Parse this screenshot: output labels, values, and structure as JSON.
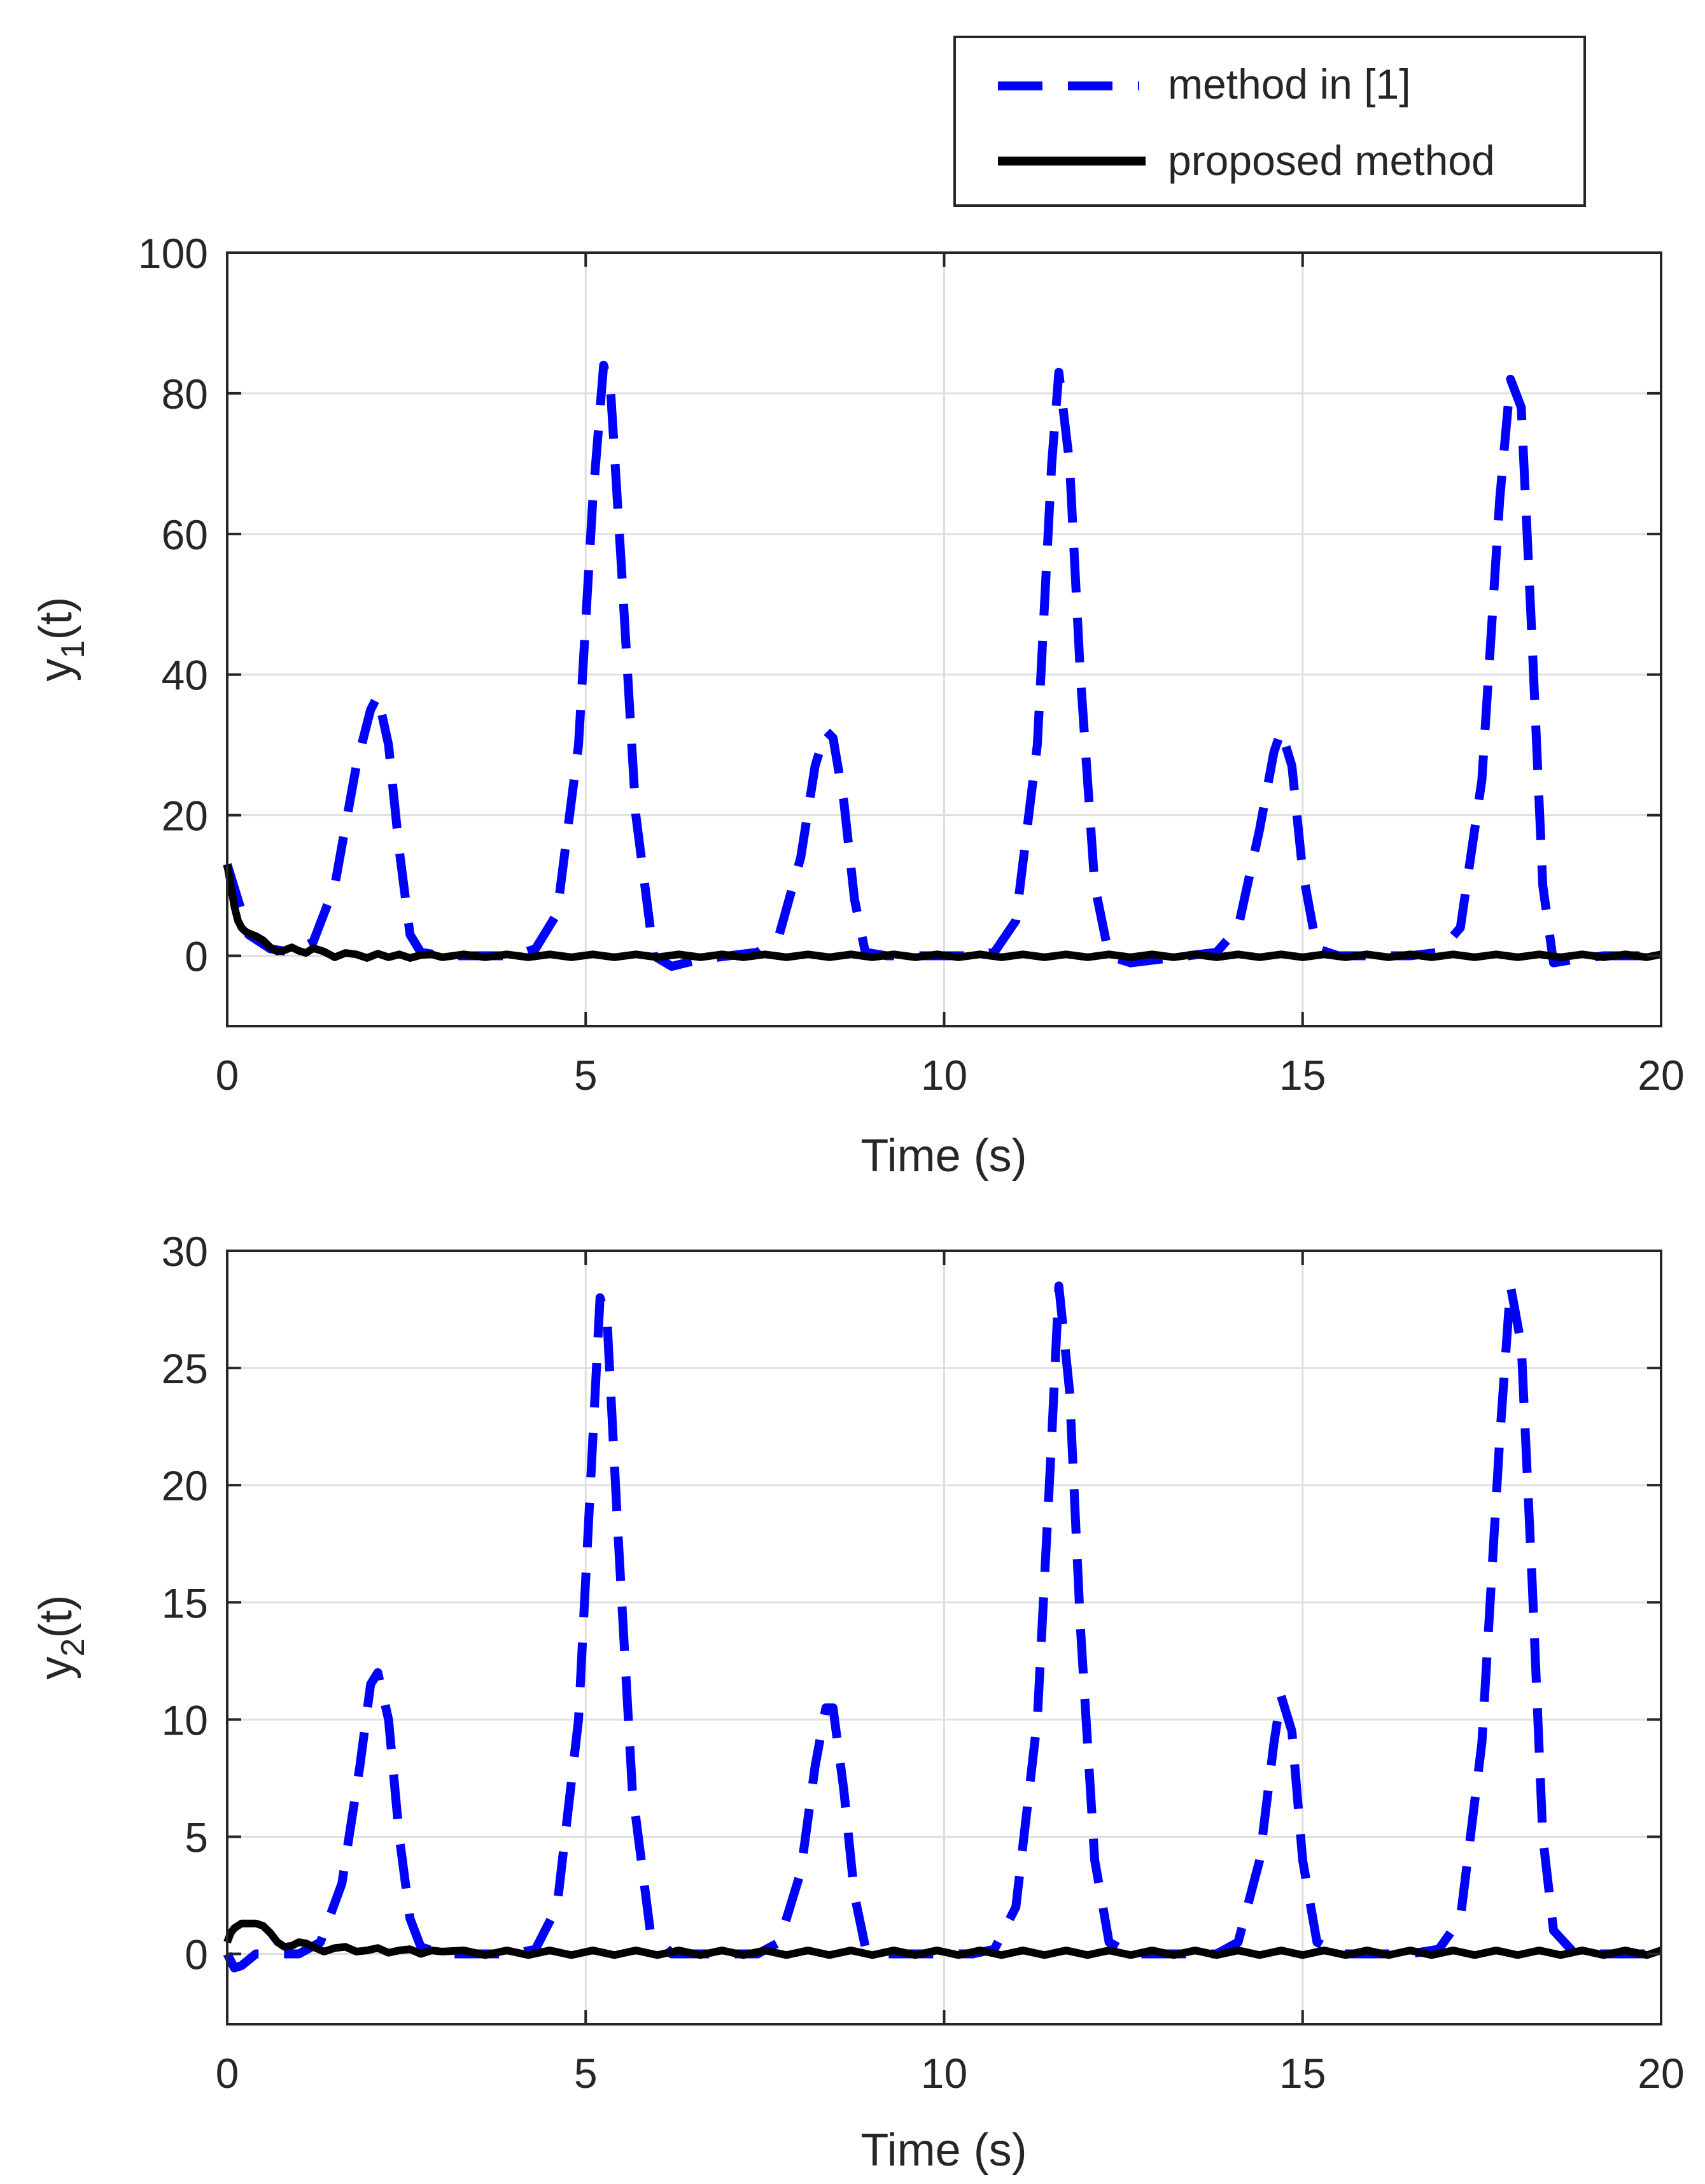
{
  "legend": {
    "placement": "top-right",
    "entries": [
      {
        "label": "method in [1]",
        "color": "#0000ff",
        "style": "dashed"
      },
      {
        "label": "proposed method",
        "color": "#000000",
        "style": "solid"
      }
    ]
  },
  "chart_data": [
    {
      "type": "line",
      "title": "",
      "xlabel": "Time (s)",
      "ylabel_main": "y",
      "ylabel_sub": "1",
      "ylabel_tail": "(t)",
      "xlim": [
        0,
        20
      ],
      "ylim": [
        -10,
        100
      ],
      "xticks": [
        0,
        5,
        10,
        15,
        20
      ],
      "yticks": [
        0,
        20,
        40,
        60,
        80,
        100
      ],
      "grid": true,
      "series": [
        {
          "name": "method in [1]",
          "color": "#0000ff",
          "style": "dashed",
          "x": [
            0,
            0.3,
            0.6,
            0.9,
            1.2,
            1.5,
            1.8,
            2.0,
            2.1,
            2.25,
            2.4,
            2.55,
            2.7,
            3.0,
            3.5,
            4.0,
            4.3,
            4.6,
            4.9,
            5.1,
            5.25,
            5.35,
            5.5,
            5.7,
            5.95,
            6.2,
            6.6,
            7.0,
            7.4,
            7.7,
            8.0,
            8.2,
            8.35,
            8.45,
            8.6,
            8.75,
            8.9,
            9.2,
            9.6,
            10.0,
            10.4,
            10.7,
            11.0,
            11.3,
            11.5,
            11.6,
            11.75,
            11.9,
            12.1,
            12.3,
            12.6,
            13.0,
            13.4,
            13.8,
            14.1,
            14.4,
            14.6,
            14.7,
            14.85,
            15.0,
            15.2,
            15.5,
            16.0,
            16.5,
            16.9,
            17.2,
            17.5,
            17.75,
            17.9,
            18.05,
            18.2,
            18.35,
            18.5,
            18.8,
            19.2,
            19.6,
            20.0
          ],
          "y": [
            13,
            3,
            1,
            0.5,
            2,
            10,
            27,
            35,
            37,
            30,
            15,
            3,
            0.5,
            0,
            0,
            0,
            1,
            6,
            30,
            65,
            84,
            80,
            55,
            20,
            0,
            -1.5,
            -0.5,
            0,
            0.5,
            3,
            14,
            27,
            32,
            31,
            22,
            8,
            0.5,
            0,
            0,
            0,
            0,
            0.5,
            5,
            30,
            70,
            83,
            70,
            40,
            10,
            0,
            -1,
            -0.5,
            0,
            0.5,
            4,
            18,
            29,
            32,
            27,
            12,
            1,
            0,
            0,
            0,
            0.5,
            4,
            25,
            65,
            82,
            78,
            45,
            10,
            -1,
            -0.5,
            0,
            0,
            0
          ]
        },
        {
          "name": "proposed method",
          "color": "#000000",
          "style": "solid",
          "x": [
            0,
            0.05,
            0.1,
            0.15,
            0.2,
            0.25,
            0.3,
            0.35,
            0.4,
            0.5,
            0.6,
            0.7,
            0.8,
            0.9,
            1.0,
            1.1,
            1.2,
            1.35,
            1.5,
            1.65,
            1.8,
            1.95,
            2.1,
            2.25,
            2.4,
            2.55,
            2.7,
            2.85,
            3.0,
            3.3,
            3.6,
            3.9,
            4.2,
            4.5,
            4.8,
            5.1,
            5.4,
            5.7,
            6.0,
            6.3,
            6.6,
            6.9,
            7.2,
            7.5,
            7.8,
            8.1,
            8.4,
            8.7,
            9.0,
            9.3,
            9.6,
            9.9,
            10.2,
            10.5,
            10.8,
            11.1,
            11.4,
            11.7,
            12.0,
            12.3,
            12.6,
            12.9,
            13.2,
            13.5,
            13.8,
            14.1,
            14.4,
            14.7,
            15.0,
            15.3,
            15.6,
            15.9,
            16.2,
            16.5,
            16.8,
            17.1,
            17.4,
            17.7,
            18.0,
            18.3,
            18.6,
            18.9,
            19.2,
            19.5,
            19.8,
            20.0
          ],
          "y": [
            13,
            10,
            7,
            5,
            4,
            3.5,
            3.2,
            3,
            2.8,
            2.2,
            1.2,
            0.6,
            0.8,
            1.2,
            0.7,
            0.4,
            1.1,
            0.6,
            -0.2,
            0.4,
            0.2,
            -0.3,
            0.3,
            -0.2,
            0.2,
            -0.3,
            0.1,
            0.2,
            -0.2,
            0.2,
            -0.2,
            0.2,
            -0.2,
            0.2,
            -0.2,
            0.2,
            -0.2,
            0.2,
            -0.2,
            0.2,
            -0.2,
            0.2,
            -0.2,
            0.2,
            -0.2,
            0.2,
            -0.2,
            0.2,
            -0.2,
            0.2,
            -0.2,
            0.2,
            -0.2,
            0.2,
            -0.2,
            0.2,
            -0.2,
            0.2,
            -0.2,
            0.2,
            -0.2,
            0.2,
            -0.2,
            0.2,
            -0.2,
            0.2,
            -0.2,
            0.2,
            -0.2,
            0.2,
            -0.2,
            0.2,
            -0.2,
            0.2,
            -0.2,
            0.2,
            -0.2,
            0.2,
            -0.2,
            0.2,
            -0.2,
            0.2,
            -0.2,
            0.2,
            -0.2,
            0.2
          ]
        }
      ]
    },
    {
      "type": "line",
      "title": "",
      "xlabel": "Time (s)",
      "ylabel_main": "y",
      "ylabel_sub": "2",
      "ylabel_tail": "(t)",
      "xlim": [
        0,
        20
      ],
      "ylim": [
        -3,
        30
      ],
      "xticks": [
        0,
        5,
        10,
        15,
        20
      ],
      "yticks": [
        0,
        5,
        10,
        15,
        20,
        25,
        30
      ],
      "grid": true,
      "series": [
        {
          "name": "method in [1]",
          "color": "#0000ff",
          "style": "dashed",
          "x": [
            0,
            0.1,
            0.2,
            0.4,
            0.7,
            1.0,
            1.3,
            1.6,
            1.85,
            2.0,
            2.1,
            2.25,
            2.4,
            2.55,
            2.7,
            3.0,
            3.5,
            4.0,
            4.3,
            4.6,
            4.9,
            5.1,
            5.2,
            5.3,
            5.45,
            5.65,
            5.9,
            6.2,
            6.6,
            7.0,
            7.4,
            7.7,
            8.0,
            8.2,
            8.35,
            8.45,
            8.6,
            8.75,
            8.9,
            9.2,
            9.6,
            10.0,
            10.4,
            10.7,
            11.0,
            11.3,
            11.5,
            11.6,
            11.75,
            11.9,
            12.1,
            12.3,
            12.6,
            13.0,
            13.4,
            13.8,
            14.1,
            14.4,
            14.6,
            14.7,
            14.85,
            15.0,
            15.2,
            15.5,
            16.0,
            16.5,
            16.9,
            17.2,
            17.5,
            17.75,
            17.9,
            18.05,
            18.2,
            18.35,
            18.5,
            18.8,
            19.2,
            19.6,
            20.0
          ],
          "y": [
            0,
            -0.6,
            -0.5,
            0,
            0,
            0,
            0.5,
            3,
            8,
            11.5,
            12,
            10,
            5,
            1.5,
            0.3,
            0,
            0,
            0,
            0.2,
            2,
            10,
            22,
            28,
            27,
            18,
            7,
            1,
            0,
            0,
            0,
            0,
            0.5,
            3.5,
            8,
            10.5,
            10.5,
            7,
            2.5,
            0.3,
            0,
            0,
            0,
            0,
            0.2,
            2,
            10,
            22,
            28.5,
            24,
            14,
            4,
            0.5,
            0,
            0,
            0,
            0,
            0.5,
            4,
            9,
            11,
            9.5,
            4,
            0.5,
            0,
            0,
            0,
            0.2,
            1.5,
            9,
            22,
            28.5,
            26,
            16,
            5,
            1,
            0,
            0,
            0,
            0
          ]
        },
        {
          "name": "proposed method",
          "color": "#000000",
          "style": "solid",
          "x": [
            0,
            0.05,
            0.1,
            0.2,
            0.3,
            0.4,
            0.5,
            0.6,
            0.7,
            0.8,
            0.9,
            1.0,
            1.1,
            1.2,
            1.35,
            1.5,
            1.65,
            1.8,
            1.95,
            2.1,
            2.25,
            2.4,
            2.55,
            2.7,
            2.85,
            3.0,
            3.3,
            3.6,
            3.9,
            4.2,
            4.5,
            4.8,
            5.1,
            5.4,
            5.7,
            6.0,
            6.3,
            6.6,
            6.9,
            7.2,
            7.5,
            7.8,
            8.1,
            8.4,
            8.7,
            9.0,
            9.3,
            9.6,
            9.9,
            10.2,
            10.5,
            10.8,
            11.1,
            11.4,
            11.7,
            12.0,
            12.3,
            12.6,
            12.9,
            13.2,
            13.5,
            13.8,
            14.1,
            14.4,
            14.7,
            15.0,
            15.3,
            15.6,
            15.9,
            16.2,
            16.5,
            16.8,
            17.1,
            17.4,
            17.7,
            18.0,
            18.3,
            18.6,
            18.9,
            19.2,
            19.5,
            19.8,
            20.0
          ],
          "y": [
            0.5,
            0.9,
            1.1,
            1.3,
            1.3,
            1.3,
            1.2,
            0.9,
            0.5,
            0.3,
            0.35,
            0.5,
            0.45,
            0.3,
            0.1,
            0.25,
            0.3,
            0.1,
            0.15,
            0.25,
            0.05,
            0.15,
            0.2,
            0.0,
            0.15,
            0.1,
            0.15,
            -0.05,
            0.15,
            -0.05,
            0.15,
            -0.05,
            0.15,
            -0.05,
            0.15,
            -0.05,
            0.15,
            -0.05,
            0.15,
            -0.05,
            0.15,
            -0.05,
            0.15,
            -0.05,
            0.15,
            -0.05,
            0.15,
            -0.05,
            0.15,
            -0.05,
            0.15,
            -0.05,
            0.15,
            -0.05,
            0.15,
            -0.05,
            0.15,
            -0.05,
            0.15,
            -0.05,
            0.15,
            -0.05,
            0.15,
            -0.05,
            0.15,
            -0.05,
            0.15,
            -0.05,
            0.15,
            -0.05,
            0.15,
            -0.05,
            0.15,
            -0.05,
            0.15,
            -0.05,
            0.15,
            -0.05,
            0.15,
            -0.05,
            0.15,
            -0.05,
            0.15
          ]
        }
      ]
    }
  ]
}
